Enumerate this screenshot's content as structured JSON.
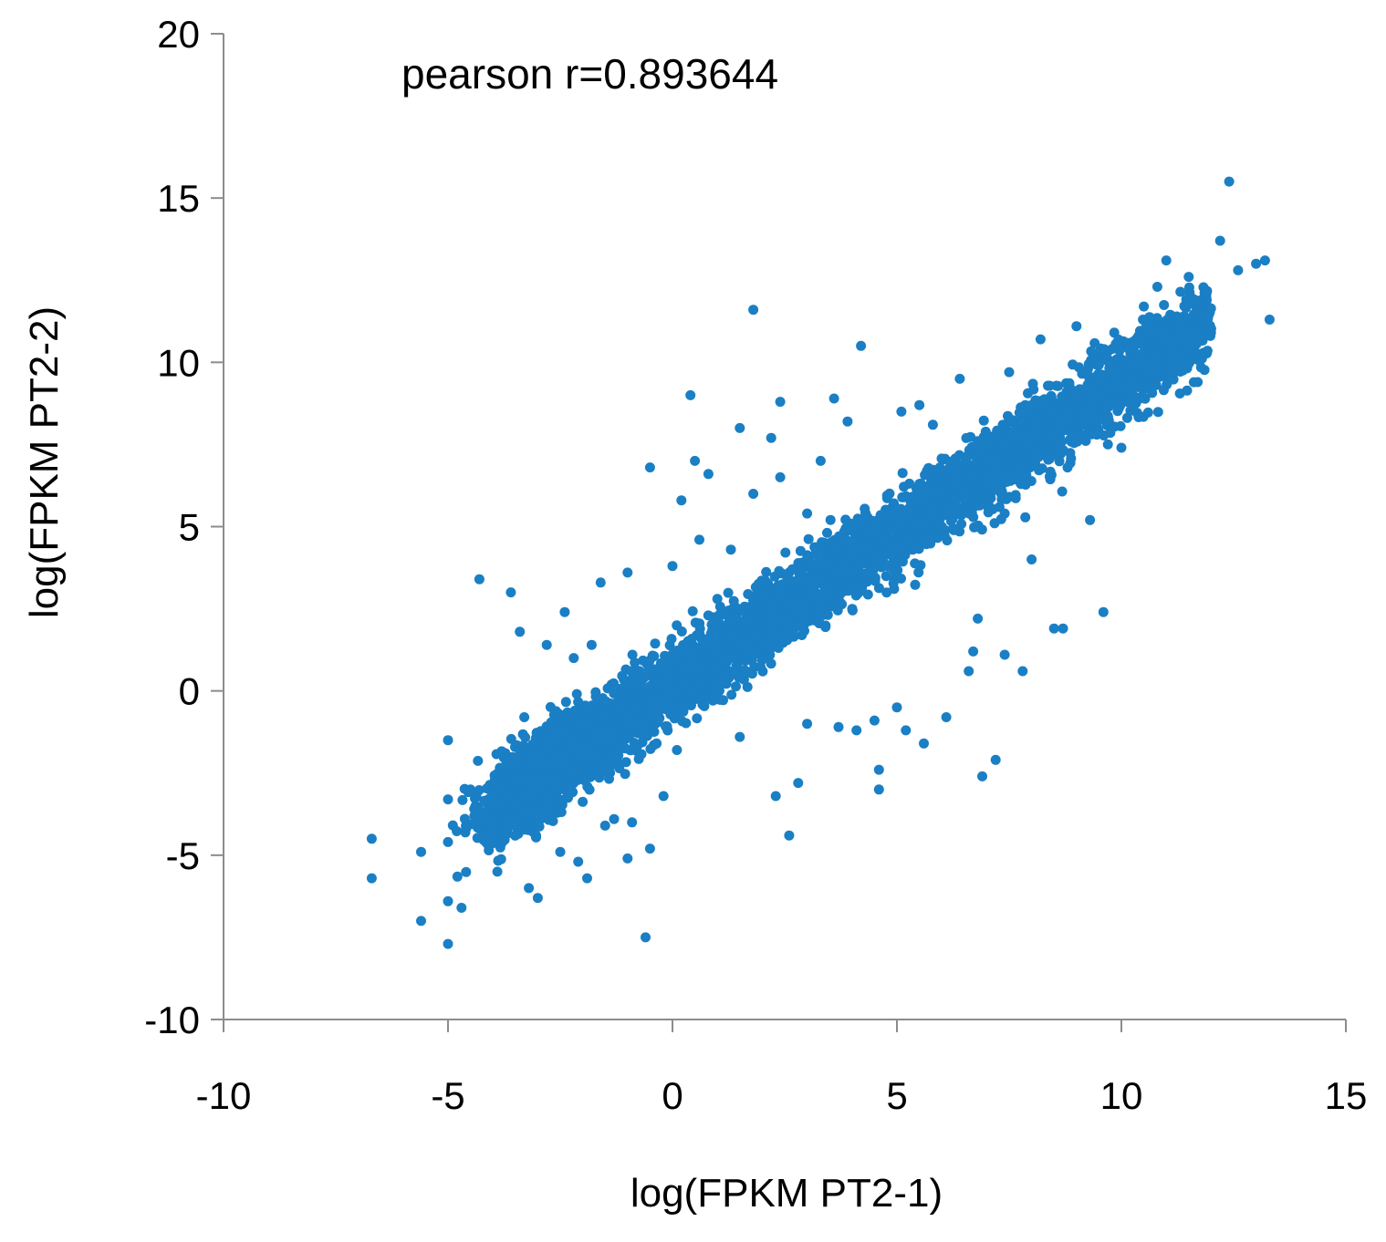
{
  "chart_data": {
    "type": "scatter",
    "title": "",
    "annotation": "pearson r=0.893644",
    "xlabel": "log(FPKM PT2-1)",
    "ylabel": "log(FPKM PT2-2)",
    "xlim": [
      -10,
      15
    ],
    "ylim": [
      -10,
      20
    ],
    "x_ticks": [
      -10,
      -5,
      0,
      5,
      10,
      15
    ],
    "y_ticks": [
      -10,
      -5,
      0,
      5,
      10,
      15,
      20
    ],
    "grid": false,
    "legend": "none",
    "marker_color": "#1a7fc4",
    "points": [
      [
        -6.7,
        -4.5
      ],
      [
        -6.7,
        -5.7
      ],
      [
        -5.6,
        -7.0
      ],
      [
        -5.6,
        -4.9
      ],
      [
        -5.0,
        -7.7
      ],
      [
        -5.0,
        -6.4
      ],
      [
        -5.0,
        -4.6
      ],
      [
        -5.0,
        -3.3
      ],
      [
        -5.0,
        -1.5
      ],
      [
        -4.7,
        -6.6
      ],
      [
        -4.6,
        -4.2
      ],
      [
        -4.3,
        3.4
      ],
      [
        -4.5,
        -3.0
      ],
      [
        -4.1,
        -4.7
      ],
      [
        -4.0,
        -3.5
      ],
      [
        -3.9,
        -5.5
      ],
      [
        -3.7,
        -2.1
      ],
      [
        -3.6,
        3.0
      ],
      [
        -3.4,
        1.8
      ],
      [
        -3.3,
        -0.8
      ],
      [
        -3.2,
        -6.0
      ],
      [
        -3.1,
        -4.3
      ],
      [
        -3.0,
        -6.3
      ],
      [
        -2.9,
        -2.7
      ],
      [
        -2.8,
        1.4
      ],
      [
        -2.5,
        -4.9
      ],
      [
        -2.4,
        2.4
      ],
      [
        -2.2,
        1.0
      ],
      [
        -2.1,
        -5.2
      ],
      [
        -1.9,
        -5.7
      ],
      [
        -1.8,
        1.4
      ],
      [
        -1.6,
        3.3
      ],
      [
        -1.5,
        -4.1
      ],
      [
        -1.3,
        -3.9
      ],
      [
        -1.0,
        3.6
      ],
      [
        -1.0,
        -5.1
      ],
      [
        -0.9,
        -4.0
      ],
      [
        -0.6,
        -7.5
      ],
      [
        -0.5,
        6.8
      ],
      [
        -0.5,
        -4.8
      ],
      [
        -0.2,
        -3.2
      ],
      [
        0.0,
        3.8
      ],
      [
        0.1,
        -1.8
      ],
      [
        0.2,
        5.8
      ],
      [
        0.4,
        9.0
      ],
      [
        0.5,
        7.0
      ],
      [
        0.6,
        -0.2
      ],
      [
        0.6,
        4.6
      ],
      [
        0.8,
        6.6
      ],
      [
        1.3,
        4.3
      ],
      [
        1.5,
        8.0
      ],
      [
        1.5,
        -1.4
      ],
      [
        1.8,
        11.6
      ],
      [
        1.8,
        6.0
      ],
      [
        2.2,
        7.7
      ],
      [
        2.3,
        -3.2
      ],
      [
        2.4,
        6.5
      ],
      [
        2.4,
        8.8
      ],
      [
        2.6,
        -4.4
      ],
      [
        2.8,
        -2.8
      ],
      [
        3.0,
        -1.0
      ],
      [
        3.3,
        7.0
      ],
      [
        3.6,
        8.9
      ],
      [
        3.7,
        -1.1
      ],
      [
        3.9,
        8.2
      ],
      [
        4.1,
        -1.2
      ],
      [
        4.2,
        10.5
      ],
      [
        4.5,
        -0.9
      ],
      [
        4.6,
        -2.4
      ],
      [
        4.6,
        -3.0
      ],
      [
        5.0,
        -0.5
      ],
      [
        5.1,
        8.5
      ],
      [
        5.2,
        -1.2
      ],
      [
        5.5,
        8.7
      ],
      [
        5.6,
        -1.6
      ],
      [
        5.8,
        8.1
      ],
      [
        6.0,
        5.0
      ],
      [
        6.1,
        -0.8
      ],
      [
        6.3,
        6.6
      ],
      [
        6.4,
        9.5
      ],
      [
        6.6,
        0.6
      ],
      [
        6.7,
        1.2
      ],
      [
        6.8,
        2.2
      ],
      [
        6.9,
        -2.6
      ],
      [
        7.0,
        7.0
      ],
      [
        7.2,
        -2.1
      ],
      [
        7.4,
        1.1
      ],
      [
        7.4,
        5.4
      ],
      [
        7.5,
        9.7
      ],
      [
        7.8,
        0.6
      ],
      [
        8.0,
        4.0
      ],
      [
        8.2,
        10.7
      ],
      [
        8.5,
        1.9
      ],
      [
        8.7,
        1.9
      ],
      [
        8.8,
        6.8
      ],
      [
        9.0,
        11.1
      ],
      [
        9.3,
        5.2
      ],
      [
        9.5,
        10.0
      ],
      [
        9.6,
        2.4
      ],
      [
        9.7,
        7.5
      ],
      [
        10.0,
        7.4
      ],
      [
        10.2,
        9.1
      ],
      [
        10.5,
        11.7
      ],
      [
        10.8,
        12.3
      ],
      [
        11.0,
        13.1
      ],
      [
        11.2,
        10.8
      ],
      [
        11.5,
        12.6
      ],
      [
        11.7,
        9.4
      ],
      [
        11.9,
        11.9
      ],
      [
        12.2,
        13.7
      ],
      [
        12.4,
        15.5
      ],
      [
        12.6,
        12.8
      ],
      [
        13.0,
        13.0
      ],
      [
        13.2,
        13.1
      ],
      [
        13.3,
        11.3
      ],
      [
        3.0,
        5.4
      ],
      [
        2.0,
        2.3
      ],
      [
        1.0,
        2.8
      ],
      [
        4.0,
        5.0
      ],
      [
        5.5,
        6.3
      ],
      [
        6.8,
        7.6
      ],
      [
        8.0,
        8.7
      ],
      [
        -1.5,
        -2.2
      ],
      [
        -2.3,
        -2.8
      ],
      [
        0.5,
        0.4
      ]
    ]
  }
}
